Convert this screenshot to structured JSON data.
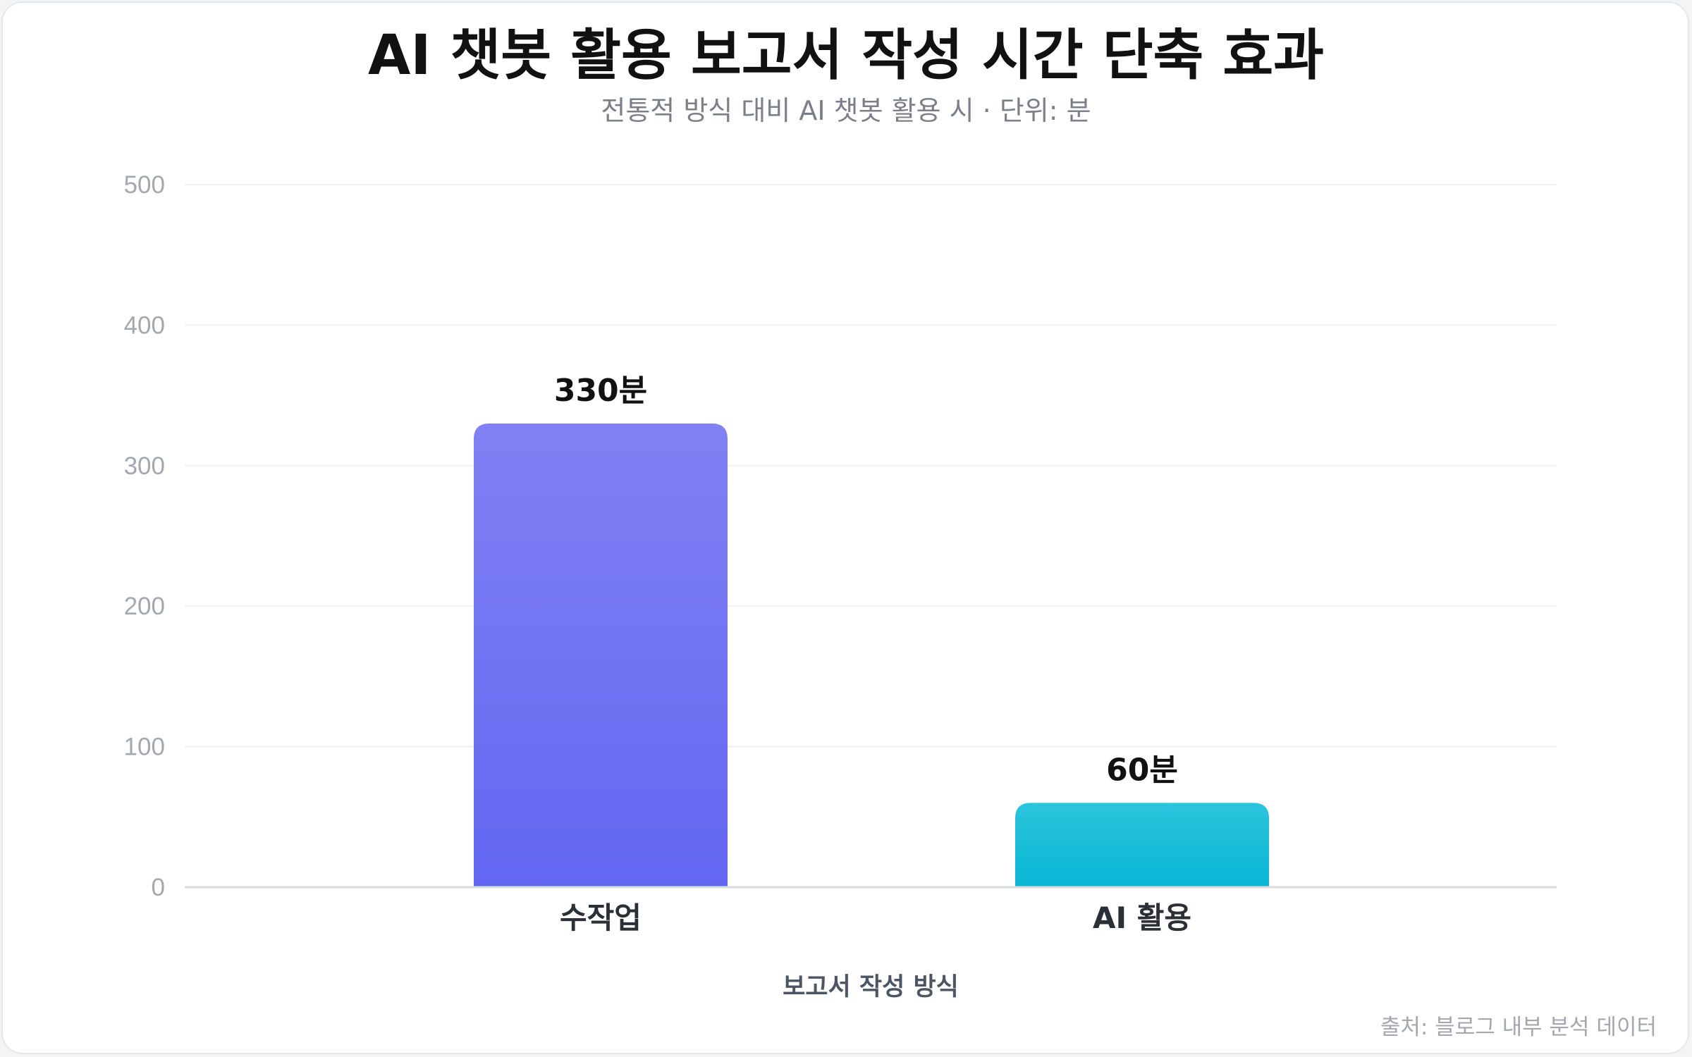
{
  "chart_data": {
    "type": "bar",
    "title": "AI 챗봇 활용 보고서 작성 시간 단축 효과",
    "subtitle": "전통적 방식 대비 AI 챗봇 활용 시 · 단위: 분",
    "categories": [
      "수작업",
      "AI 활용"
    ],
    "values": [
      330,
      60
    ],
    "value_labels": [
      "330분",
      "60분"
    ],
    "xlabel": "보고서 작성 방식",
    "ylabel": "",
    "ylim": [
      0,
      500
    ],
    "yticks": [
      0,
      100,
      200,
      300,
      400,
      500
    ],
    "grid": true,
    "legend": "none",
    "source": "출처: 블로그 내부 분석 데이터",
    "colors": {
      "bar1_top": "#8181f4",
      "bar1_bottom": "#6366f1",
      "bar2_top": "#2cc3dc",
      "bar2_bottom": "#08b6d4",
      "background": "#ffffff",
      "grid": "#f0f1f3"
    }
  }
}
